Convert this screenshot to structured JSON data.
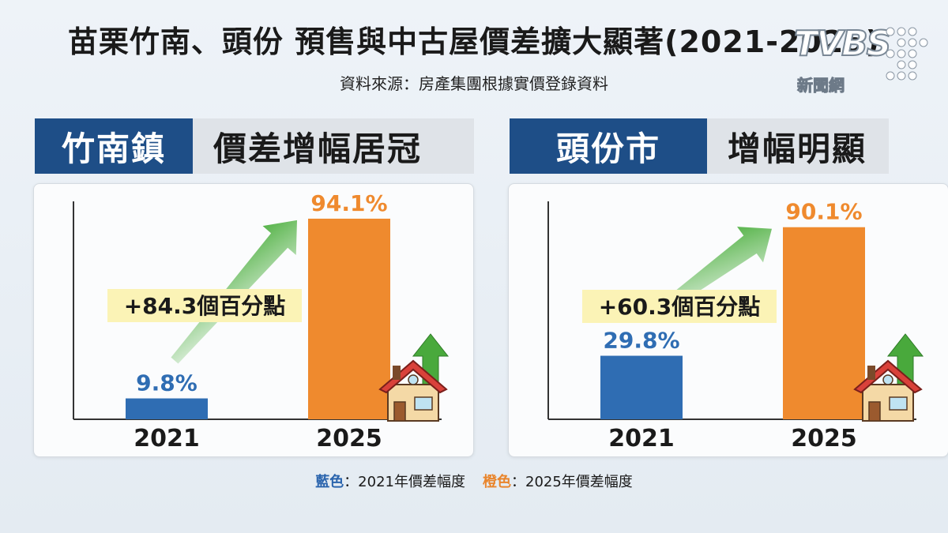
{
  "header": {
    "title": "苗栗竹南、頭份 預售與中古屋價差擴大顯著(2021-2025)",
    "source": "資料來源：房產集團根據實價登錄資料"
  },
  "logo": {
    "brand": "TVBS",
    "sub": "新聞網"
  },
  "panels": [
    {
      "tag": "竹南鎮",
      "headline": "價差增幅居冠",
      "change_label": "+84.3個百分點"
    },
    {
      "tag": "頭份市",
      "headline": "增幅明顯",
      "change_label": "+60.3個百分點"
    }
  ],
  "legend": {
    "blue_label": "藍色",
    "blue_text": "：2021年價差幅度",
    "orange_label": "橙色",
    "orange_text": "：2025年價差幅度"
  },
  "colors": {
    "bar_2021": "#2f6db3",
    "bar_2025": "#ef8a2e",
    "arrow": "#4caf3e",
    "tag_bg": "#1e4e87"
  },
  "chart_data": [
    {
      "type": "bar",
      "categories": [
        "2021",
        "2025"
      ],
      "values": [
        9.8,
        94.1
      ],
      "value_labels": [
        "9.8%",
        "94.1%"
      ],
      "annotation": "+84.3個百分點",
      "ylim": [
        0,
        100
      ]
    },
    {
      "type": "bar",
      "categories": [
        "2021",
        "2025"
      ],
      "values": [
        29.8,
        90.1
      ],
      "value_labels": [
        "29.8%",
        "90.1%"
      ],
      "annotation": "+60.3個百分點",
      "ylim": [
        0,
        100
      ]
    }
  ]
}
